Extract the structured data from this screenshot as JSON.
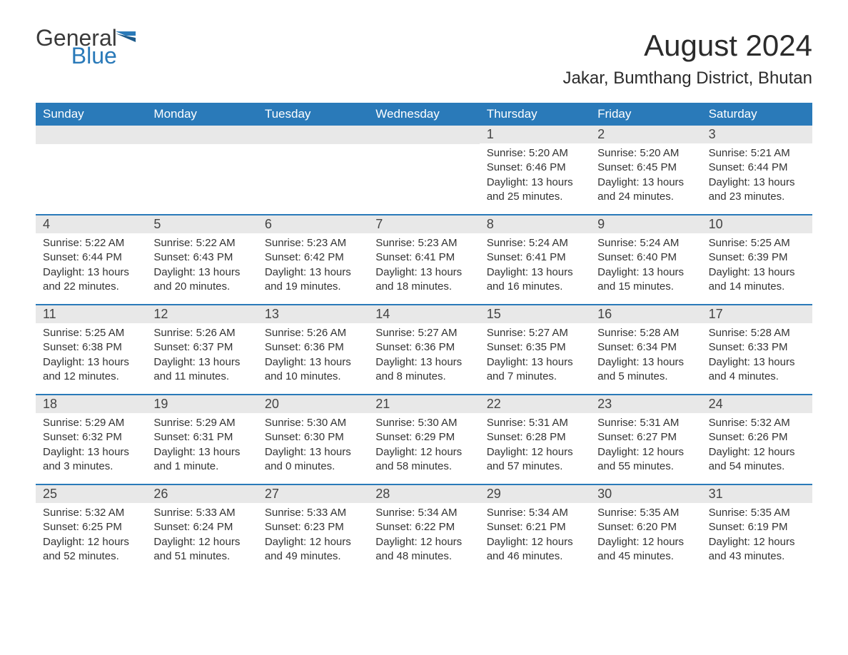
{
  "logo": {
    "general": "General",
    "blue": "Blue"
  },
  "title": "August 2024",
  "location": "Jakar, Bumthang District, Bhutan",
  "colors": {
    "header_bg": "#2a7ab9",
    "header_text": "#ffffff",
    "daynum_bg": "#e8e8e8",
    "border": "#2a7ab9",
    "text": "#333333",
    "logo_blue": "#2a7ab9"
  },
  "days_of_week": [
    "Sunday",
    "Monday",
    "Tuesday",
    "Wednesday",
    "Thursday",
    "Friday",
    "Saturday"
  ],
  "weeks": [
    [
      {
        "blank": true
      },
      {
        "blank": true
      },
      {
        "blank": true
      },
      {
        "blank": true
      },
      {
        "n": "1",
        "sunrise": "5:20 AM",
        "sunset": "6:46 PM",
        "daylight": "13 hours and 25 minutes."
      },
      {
        "n": "2",
        "sunrise": "5:20 AM",
        "sunset": "6:45 PM",
        "daylight": "13 hours and 24 minutes."
      },
      {
        "n": "3",
        "sunrise": "5:21 AM",
        "sunset": "6:44 PM",
        "daylight": "13 hours and 23 minutes."
      }
    ],
    [
      {
        "n": "4",
        "sunrise": "5:22 AM",
        "sunset": "6:44 PM",
        "daylight": "13 hours and 22 minutes."
      },
      {
        "n": "5",
        "sunrise": "5:22 AM",
        "sunset": "6:43 PM",
        "daylight": "13 hours and 20 minutes."
      },
      {
        "n": "6",
        "sunrise": "5:23 AM",
        "sunset": "6:42 PM",
        "daylight": "13 hours and 19 minutes."
      },
      {
        "n": "7",
        "sunrise": "5:23 AM",
        "sunset": "6:41 PM",
        "daylight": "13 hours and 18 minutes."
      },
      {
        "n": "8",
        "sunrise": "5:24 AM",
        "sunset": "6:41 PM",
        "daylight": "13 hours and 16 minutes."
      },
      {
        "n": "9",
        "sunrise": "5:24 AM",
        "sunset": "6:40 PM",
        "daylight": "13 hours and 15 minutes."
      },
      {
        "n": "10",
        "sunrise": "5:25 AM",
        "sunset": "6:39 PM",
        "daylight": "13 hours and 14 minutes."
      }
    ],
    [
      {
        "n": "11",
        "sunrise": "5:25 AM",
        "sunset": "6:38 PM",
        "daylight": "13 hours and 12 minutes."
      },
      {
        "n": "12",
        "sunrise": "5:26 AM",
        "sunset": "6:37 PM",
        "daylight": "13 hours and 11 minutes."
      },
      {
        "n": "13",
        "sunrise": "5:26 AM",
        "sunset": "6:36 PM",
        "daylight": "13 hours and 10 minutes."
      },
      {
        "n": "14",
        "sunrise": "5:27 AM",
        "sunset": "6:36 PM",
        "daylight": "13 hours and 8 minutes."
      },
      {
        "n": "15",
        "sunrise": "5:27 AM",
        "sunset": "6:35 PM",
        "daylight": "13 hours and 7 minutes."
      },
      {
        "n": "16",
        "sunrise": "5:28 AM",
        "sunset": "6:34 PM",
        "daylight": "13 hours and 5 minutes."
      },
      {
        "n": "17",
        "sunrise": "5:28 AM",
        "sunset": "6:33 PM",
        "daylight": "13 hours and 4 minutes."
      }
    ],
    [
      {
        "n": "18",
        "sunrise": "5:29 AM",
        "sunset": "6:32 PM",
        "daylight": "13 hours and 3 minutes."
      },
      {
        "n": "19",
        "sunrise": "5:29 AM",
        "sunset": "6:31 PM",
        "daylight": "13 hours and 1 minute."
      },
      {
        "n": "20",
        "sunrise": "5:30 AM",
        "sunset": "6:30 PM",
        "daylight": "13 hours and 0 minutes."
      },
      {
        "n": "21",
        "sunrise": "5:30 AM",
        "sunset": "6:29 PM",
        "daylight": "12 hours and 58 minutes."
      },
      {
        "n": "22",
        "sunrise": "5:31 AM",
        "sunset": "6:28 PM",
        "daylight": "12 hours and 57 minutes."
      },
      {
        "n": "23",
        "sunrise": "5:31 AM",
        "sunset": "6:27 PM",
        "daylight": "12 hours and 55 minutes."
      },
      {
        "n": "24",
        "sunrise": "5:32 AM",
        "sunset": "6:26 PM",
        "daylight": "12 hours and 54 minutes."
      }
    ],
    [
      {
        "n": "25",
        "sunrise": "5:32 AM",
        "sunset": "6:25 PM",
        "daylight": "12 hours and 52 minutes."
      },
      {
        "n": "26",
        "sunrise": "5:33 AM",
        "sunset": "6:24 PM",
        "daylight": "12 hours and 51 minutes."
      },
      {
        "n": "27",
        "sunrise": "5:33 AM",
        "sunset": "6:23 PM",
        "daylight": "12 hours and 49 minutes."
      },
      {
        "n": "28",
        "sunrise": "5:34 AM",
        "sunset": "6:22 PM",
        "daylight": "12 hours and 48 minutes."
      },
      {
        "n": "29",
        "sunrise": "5:34 AM",
        "sunset": "6:21 PM",
        "daylight": "12 hours and 46 minutes."
      },
      {
        "n": "30",
        "sunrise": "5:35 AM",
        "sunset": "6:20 PM",
        "daylight": "12 hours and 45 minutes."
      },
      {
        "n": "31",
        "sunrise": "5:35 AM",
        "sunset": "6:19 PM",
        "daylight": "12 hours and 43 minutes."
      }
    ]
  ],
  "labels": {
    "sunrise": "Sunrise: ",
    "sunset": "Sunset: ",
    "daylight": "Daylight: "
  }
}
